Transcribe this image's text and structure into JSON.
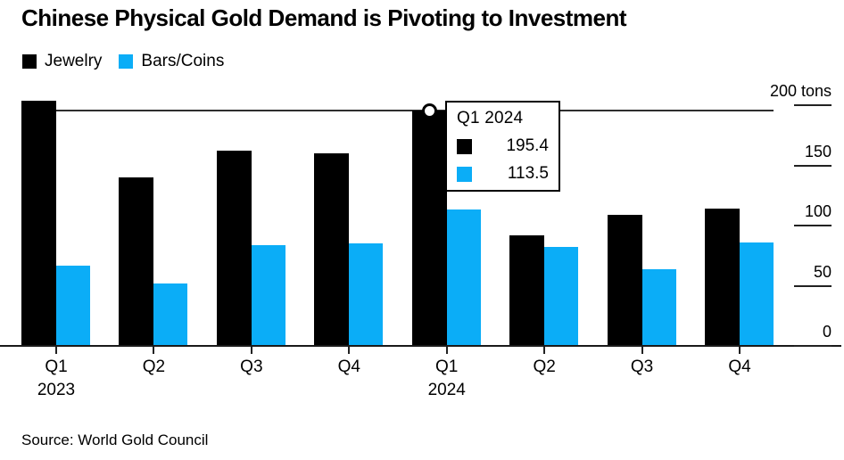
{
  "title": "Chinese Physical Gold Demand is Pivoting to Investment",
  "source": "Source: World Gold Council",
  "legend": [
    {
      "label": "Jewelry",
      "color": "#000000"
    },
    {
      "label": "Bars/Coins",
      "color": "#0badf7"
    }
  ],
  "tooltip": {
    "title": "Q1 2024",
    "rows": [
      {
        "series": "Jewelry",
        "color": "#000000",
        "value": "195.4"
      },
      {
        "series": "Bars/Coins",
        "color": "#0badf7",
        "value": "113.5"
      }
    ]
  },
  "y_axis": {
    "unit": "tons",
    "ticks": [
      {
        "label": "200 tons",
        "value": 200
      },
      {
        "label": "150",
        "value": 150
      },
      {
        "label": "100",
        "value": 100
      },
      {
        "label": "50",
        "value": 50
      },
      {
        "label": "0",
        "value": 0
      }
    ]
  },
  "x_axis": {
    "groups": [
      {
        "quarter": "Q1",
        "year": "2023"
      },
      {
        "quarter": "Q2",
        "year": ""
      },
      {
        "quarter": "Q3",
        "year": ""
      },
      {
        "quarter": "Q4",
        "year": ""
      },
      {
        "quarter": "Q1",
        "year": "2024"
      },
      {
        "quarter": "Q2",
        "year": ""
      },
      {
        "quarter": "Q3",
        "year": ""
      },
      {
        "quarter": "Q4",
        "year": ""
      }
    ]
  },
  "chart_data": {
    "type": "bar",
    "title": "Chinese Physical Gold Demand is Pivoting to Investment",
    "categories": [
      "Q1 2023",
      "Q2 2023",
      "Q3 2023",
      "Q4 2023",
      "Q1 2024",
      "Q2 2024",
      "Q3 2024",
      "Q4 2024"
    ],
    "series": [
      {
        "name": "Jewelry",
        "color": "#000000",
        "values": [
          204,
          140,
          162,
          160,
          195.4,
          92,
          109,
          114
        ]
      },
      {
        "name": "Bars/Coins",
        "color": "#0badf7",
        "values": [
          67,
          52,
          84,
          85,
          113.5,
          82,
          64,
          86
        ]
      }
    ],
    "ylabel": "tons",
    "ylim": [
      0,
      210
    ],
    "grid": false,
    "legend_position": "top-left",
    "highlight": {
      "category": "Q1 2024",
      "index": 4,
      "marker_series": "Jewelry",
      "marker_value": 195.4
    }
  }
}
